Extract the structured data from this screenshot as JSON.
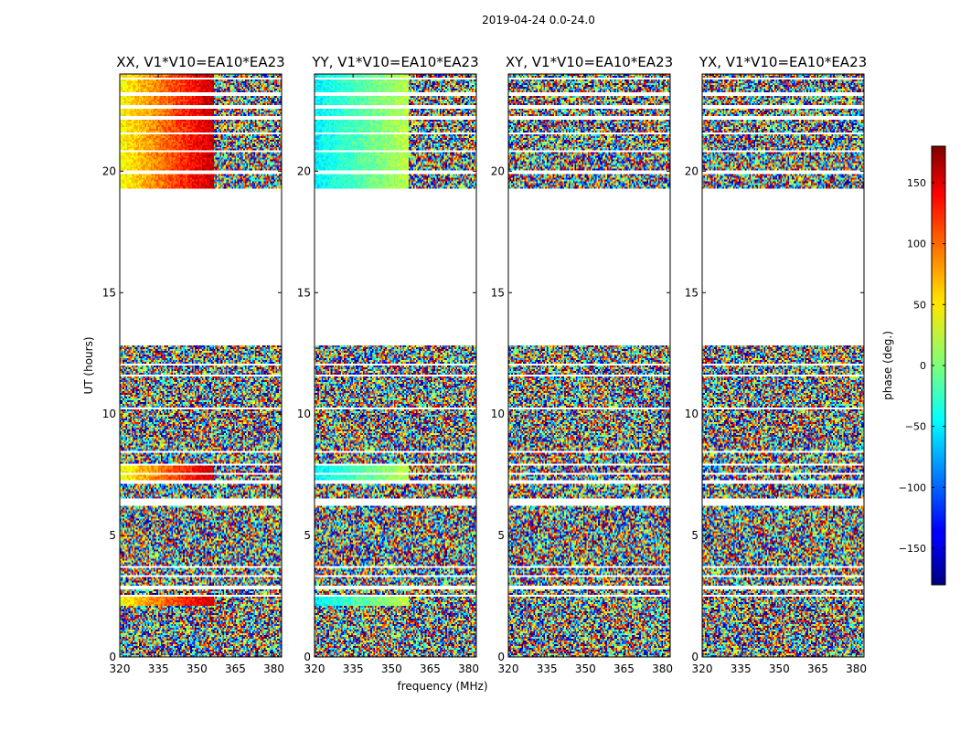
{
  "chart_data": {
    "type": "heatmap",
    "title": "2019-04-24 0.0-24.0",
    "xlabel": "frequency (MHz)",
    "ylabel": "UT (hours)",
    "xlim": [
      320,
      383
    ],
    "ylim": [
      0,
      24
    ],
    "x_ticks": [
      320,
      335,
      350,
      365,
      380
    ],
    "y_ticks": [
      0,
      5,
      10,
      15,
      20
    ],
    "panels": [
      {
        "name": "XX",
        "title": "XX, V1*V10=EA10*EA23",
        "mode": "coherent-red"
      },
      {
        "name": "YY",
        "title": "YY, V1*V10=EA10*EA23",
        "mode": "coherent-cyan"
      },
      {
        "name": "XY",
        "title": "XY, V1*V10=EA10*EA23",
        "mode": "noise"
      },
      {
        "name": "YX",
        "title": "YX, V1*V10=EA10*EA23",
        "mode": "noise"
      }
    ],
    "data_time_ranges_hours": [
      [
        0.0,
        12.8
      ],
      [
        19.3,
        24.0
      ]
    ],
    "colorbar": {
      "label": "phase (deg.)",
      "range": [
        -180,
        180
      ],
      "ticks": [
        -150,
        -100,
        -50,
        0,
        50,
        100,
        150
      ],
      "tick_labels": [
        "−150",
        "−100",
        "−50",
        "0",
        "50",
        "100",
        "150"
      ],
      "colormap": "jet"
    }
  }
}
